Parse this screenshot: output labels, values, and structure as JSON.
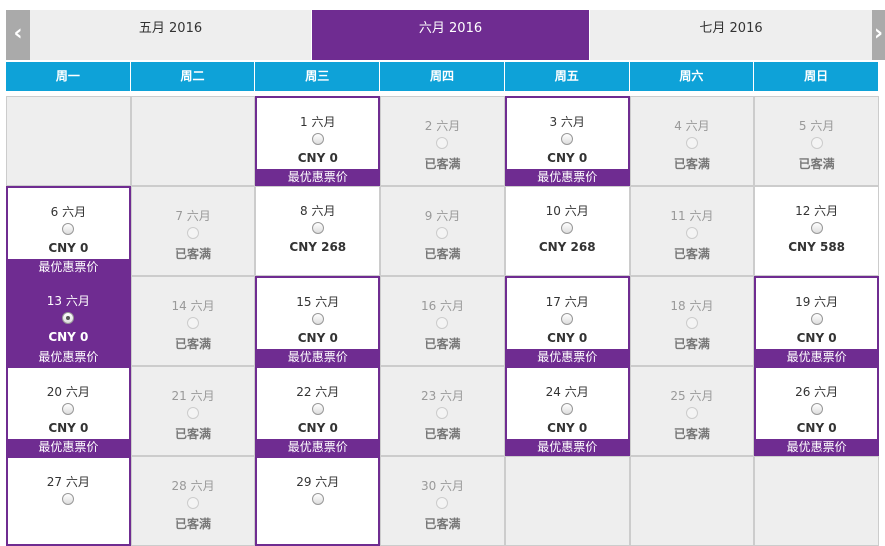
{
  "tabs": {
    "prev": "‹",
    "months": [
      "五月 2016",
      "六月 2016",
      "七月 2016"
    ],
    "next": "›",
    "active": 1
  },
  "weekdays": [
    "周一",
    "周二",
    "周三",
    "周四",
    "周五",
    "周六",
    "周日"
  ],
  "weeks": [
    [
      null,
      null,
      {
        "date": "1 六月",
        "price": "CNY 0",
        "badge": "最优惠票价"
      },
      {
        "date": "2 六月",
        "status": "已客满"
      },
      {
        "date": "3 六月",
        "price": "CNY 0",
        "badge": "最优惠票价"
      },
      {
        "date": "4 六月",
        "status": "已客满"
      },
      {
        "date": "5 六月",
        "status": "已客满"
      }
    ],
    [
      {
        "date": "6 六月",
        "price": "CNY 0",
        "badge": "最优惠票价"
      },
      {
        "date": "7 六月",
        "status": "已客满"
      },
      {
        "date": "8 六月",
        "price": "CNY 268"
      },
      {
        "date": "9 六月",
        "status": "已客满"
      },
      {
        "date": "10 六月",
        "price": "CNY 268"
      },
      {
        "date": "11 六月",
        "status": "已客满"
      },
      {
        "date": "12 六月",
        "price": "CNY 588"
      }
    ],
    [
      {
        "date": "13 六月",
        "price": "CNY 0",
        "badge": "最优惠票价",
        "selected": true
      },
      {
        "date": "14 六月",
        "status": "已客满"
      },
      {
        "date": "15 六月",
        "price": "CNY 0",
        "badge": "最优惠票价"
      },
      {
        "date": "16 六月",
        "status": "已客满"
      },
      {
        "date": "17 六月",
        "price": "CNY 0",
        "badge": "最优惠票价"
      },
      {
        "date": "18 六月",
        "status": "已客满"
      },
      {
        "date": "19 六月",
        "price": "CNY 0",
        "badge": "最优惠票价"
      }
    ],
    [
      {
        "date": "20 六月",
        "price": "CNY 0",
        "badge": "最优惠票价"
      },
      {
        "date": "21 六月",
        "status": "已客满"
      },
      {
        "date": "22 六月",
        "price": "CNY 0",
        "badge": "最优惠票价"
      },
      {
        "date": "23 六月",
        "status": "已客满"
      },
      {
        "date": "24 六月",
        "price": "CNY 0",
        "badge": "最优惠票价"
      },
      {
        "date": "25 六月",
        "status": "已客满"
      },
      {
        "date": "26 六月",
        "price": "CNY 0",
        "badge": "最优惠票价"
      }
    ],
    [
      {
        "date": "27 六月",
        "highlight": true
      },
      {
        "date": "28 六月",
        "status": "已客满"
      },
      {
        "date": "29 六月",
        "highlight": true
      },
      {
        "date": "30 六月",
        "status": "已客满"
      },
      null,
      null,
      null
    ]
  ]
}
